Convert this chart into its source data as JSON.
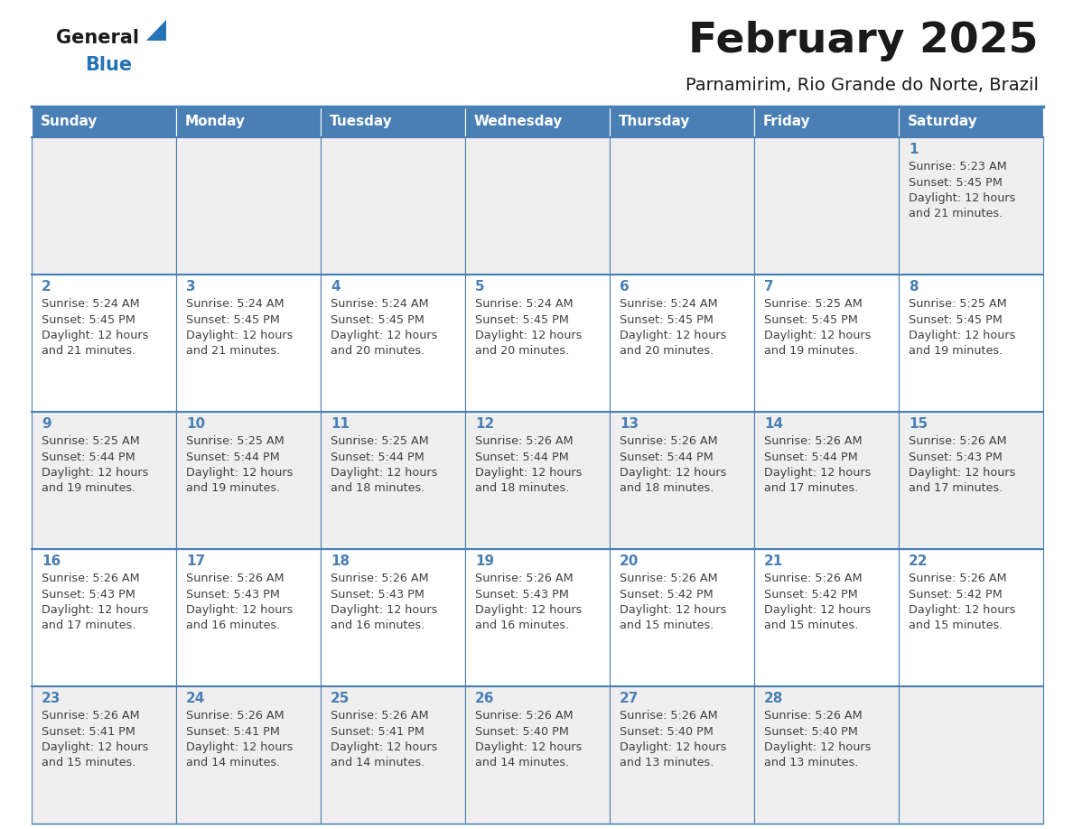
{
  "title": "February 2025",
  "subtitle": "Parnamirim, Rio Grande do Norte, Brazil",
  "days_of_week": [
    "Sunday",
    "Monday",
    "Tuesday",
    "Wednesday",
    "Thursday",
    "Friday",
    "Saturday"
  ],
  "header_bg": "#4a7fb5",
  "header_text": "#ffffff",
  "row_bg_even": "#efefef",
  "row_bg_odd": "#ffffff",
  "border_color": "#4a7fb5",
  "day_number_color": "#4a7fb5",
  "cell_text_color": "#404040",
  "title_color": "#1a1a1a",
  "subtitle_color": "#1a1a1a",
  "generalblue_black": "#1a1a1a",
  "generalblue_blue": "#2473b5",
  "calendar_data": [
    [
      null,
      null,
      null,
      null,
      null,
      null,
      {
        "day": 1,
        "sunrise": "5:23 AM",
        "sunset": "5:45 PM",
        "daylight": "12 hours",
        "daylight2": "and 21 minutes."
      }
    ],
    [
      {
        "day": 2,
        "sunrise": "5:24 AM",
        "sunset": "5:45 PM",
        "daylight": "12 hours",
        "daylight2": "and 21 minutes."
      },
      {
        "day": 3,
        "sunrise": "5:24 AM",
        "sunset": "5:45 PM",
        "daylight": "12 hours",
        "daylight2": "and 21 minutes."
      },
      {
        "day": 4,
        "sunrise": "5:24 AM",
        "sunset": "5:45 PM",
        "daylight": "12 hours",
        "daylight2": "and 20 minutes."
      },
      {
        "day": 5,
        "sunrise": "5:24 AM",
        "sunset": "5:45 PM",
        "daylight": "12 hours",
        "daylight2": "and 20 minutes."
      },
      {
        "day": 6,
        "sunrise": "5:24 AM",
        "sunset": "5:45 PM",
        "daylight": "12 hours",
        "daylight2": "and 20 minutes."
      },
      {
        "day": 7,
        "sunrise": "5:25 AM",
        "sunset": "5:45 PM",
        "daylight": "12 hours",
        "daylight2": "and 19 minutes."
      },
      {
        "day": 8,
        "sunrise": "5:25 AM",
        "sunset": "5:45 PM",
        "daylight": "12 hours",
        "daylight2": "and 19 minutes."
      }
    ],
    [
      {
        "day": 9,
        "sunrise": "5:25 AM",
        "sunset": "5:44 PM",
        "daylight": "12 hours",
        "daylight2": "and 19 minutes."
      },
      {
        "day": 10,
        "sunrise": "5:25 AM",
        "sunset": "5:44 PM",
        "daylight": "12 hours",
        "daylight2": "and 19 minutes."
      },
      {
        "day": 11,
        "sunrise": "5:25 AM",
        "sunset": "5:44 PM",
        "daylight": "12 hours",
        "daylight2": "and 18 minutes."
      },
      {
        "day": 12,
        "sunrise": "5:26 AM",
        "sunset": "5:44 PM",
        "daylight": "12 hours",
        "daylight2": "and 18 minutes."
      },
      {
        "day": 13,
        "sunrise": "5:26 AM",
        "sunset": "5:44 PM",
        "daylight": "12 hours",
        "daylight2": "and 18 minutes."
      },
      {
        "day": 14,
        "sunrise": "5:26 AM",
        "sunset": "5:44 PM",
        "daylight": "12 hours",
        "daylight2": "and 17 minutes."
      },
      {
        "day": 15,
        "sunrise": "5:26 AM",
        "sunset": "5:43 PM",
        "daylight": "12 hours",
        "daylight2": "and 17 minutes."
      }
    ],
    [
      {
        "day": 16,
        "sunrise": "5:26 AM",
        "sunset": "5:43 PM",
        "daylight": "12 hours",
        "daylight2": "and 17 minutes."
      },
      {
        "day": 17,
        "sunrise": "5:26 AM",
        "sunset": "5:43 PM",
        "daylight": "12 hours",
        "daylight2": "and 16 minutes."
      },
      {
        "day": 18,
        "sunrise": "5:26 AM",
        "sunset": "5:43 PM",
        "daylight": "12 hours",
        "daylight2": "and 16 minutes."
      },
      {
        "day": 19,
        "sunrise": "5:26 AM",
        "sunset": "5:43 PM",
        "daylight": "12 hours",
        "daylight2": "and 16 minutes."
      },
      {
        "day": 20,
        "sunrise": "5:26 AM",
        "sunset": "5:42 PM",
        "daylight": "12 hours",
        "daylight2": "and 15 minutes."
      },
      {
        "day": 21,
        "sunrise": "5:26 AM",
        "sunset": "5:42 PM",
        "daylight": "12 hours",
        "daylight2": "and 15 minutes."
      },
      {
        "day": 22,
        "sunrise": "5:26 AM",
        "sunset": "5:42 PM",
        "daylight": "12 hours",
        "daylight2": "and 15 minutes."
      }
    ],
    [
      {
        "day": 23,
        "sunrise": "5:26 AM",
        "sunset": "5:41 PM",
        "daylight": "12 hours",
        "daylight2": "and 15 minutes."
      },
      {
        "day": 24,
        "sunrise": "5:26 AM",
        "sunset": "5:41 PM",
        "daylight": "12 hours",
        "daylight2": "and 14 minutes."
      },
      {
        "day": 25,
        "sunrise": "5:26 AM",
        "sunset": "5:41 PM",
        "daylight": "12 hours",
        "daylight2": "and 14 minutes."
      },
      {
        "day": 26,
        "sunrise": "5:26 AM",
        "sunset": "5:40 PM",
        "daylight": "12 hours",
        "daylight2": "and 14 minutes."
      },
      {
        "day": 27,
        "sunrise": "5:26 AM",
        "sunset": "5:40 PM",
        "daylight": "12 hours",
        "daylight2": "and 13 minutes."
      },
      {
        "day": 28,
        "sunrise": "5:26 AM",
        "sunset": "5:40 PM",
        "daylight": "12 hours",
        "daylight2": "and 13 minutes."
      },
      null
    ]
  ],
  "num_rows": 5,
  "num_cols": 7
}
